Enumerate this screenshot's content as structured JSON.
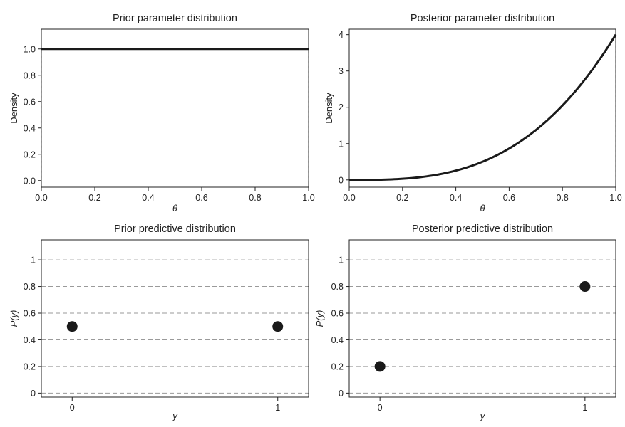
{
  "chart_data": [
    {
      "type": "line",
      "title": "Prior parameter distribution",
      "xlabel": "θ",
      "ylabel": "Density",
      "xlim": [
        0,
        1
      ],
      "ylim": [
        -0.05,
        1.15
      ],
      "xticks": [
        "0.0",
        "0.2",
        "0.4",
        "0.6",
        "0.8",
        "1.0"
      ],
      "yticks": [
        "0.0",
        "0.2",
        "0.4",
        "0.6",
        "0.8",
        "1.0"
      ],
      "function": "uniform density on [0,1]",
      "x": [
        0,
        1
      ],
      "y": [
        1,
        1
      ],
      "grid": false
    },
    {
      "type": "line",
      "title": "Posterior parameter distribution",
      "xlabel": "θ",
      "ylabel": "Density",
      "xlim": [
        0,
        1
      ],
      "ylim": [
        -0.2,
        4.15
      ],
      "xticks": [
        "0.0",
        "0.2",
        "0.4",
        "0.6",
        "0.8",
        "1.0"
      ],
      "yticks": [
        "0",
        "1",
        "2",
        "3",
        "4"
      ],
      "function": "4θ^3",
      "x": [
        0,
        0.1,
        0.2,
        0.3,
        0.4,
        0.5,
        0.6,
        0.7,
        0.8,
        0.9,
        1.0
      ],
      "y": [
        0,
        0.004,
        0.032,
        0.108,
        0.256,
        0.5,
        0.864,
        1.372,
        2.048,
        2.916,
        4.0
      ],
      "grid": false
    },
    {
      "type": "scatter",
      "title": "Prior predictive distribution",
      "xlabel": "y",
      "ylabel": "P(y)",
      "xlim": [
        -0.15,
        1.15
      ],
      "ylim": [
        -0.03,
        1.15
      ],
      "xticks": [
        "0",
        "1"
      ],
      "yticks": [
        "0",
        "0.2",
        "0.4",
        "0.6",
        "0.8",
        "1"
      ],
      "x": [
        0,
        1
      ],
      "y": [
        0.5,
        0.5
      ],
      "grid": true
    },
    {
      "type": "scatter",
      "title": "Posterior predictive distribution",
      "xlabel": "y",
      "ylabel": "P(y)",
      "xlim": [
        -0.15,
        1.15
      ],
      "ylim": [
        -0.03,
        1.15
      ],
      "xticks": [
        "0",
        "1"
      ],
      "yticks": [
        "0",
        "0.2",
        "0.4",
        "0.6",
        "0.8",
        "1"
      ],
      "x": [
        0,
        1
      ],
      "y": [
        0.2,
        0.8
      ],
      "grid": true
    }
  ]
}
